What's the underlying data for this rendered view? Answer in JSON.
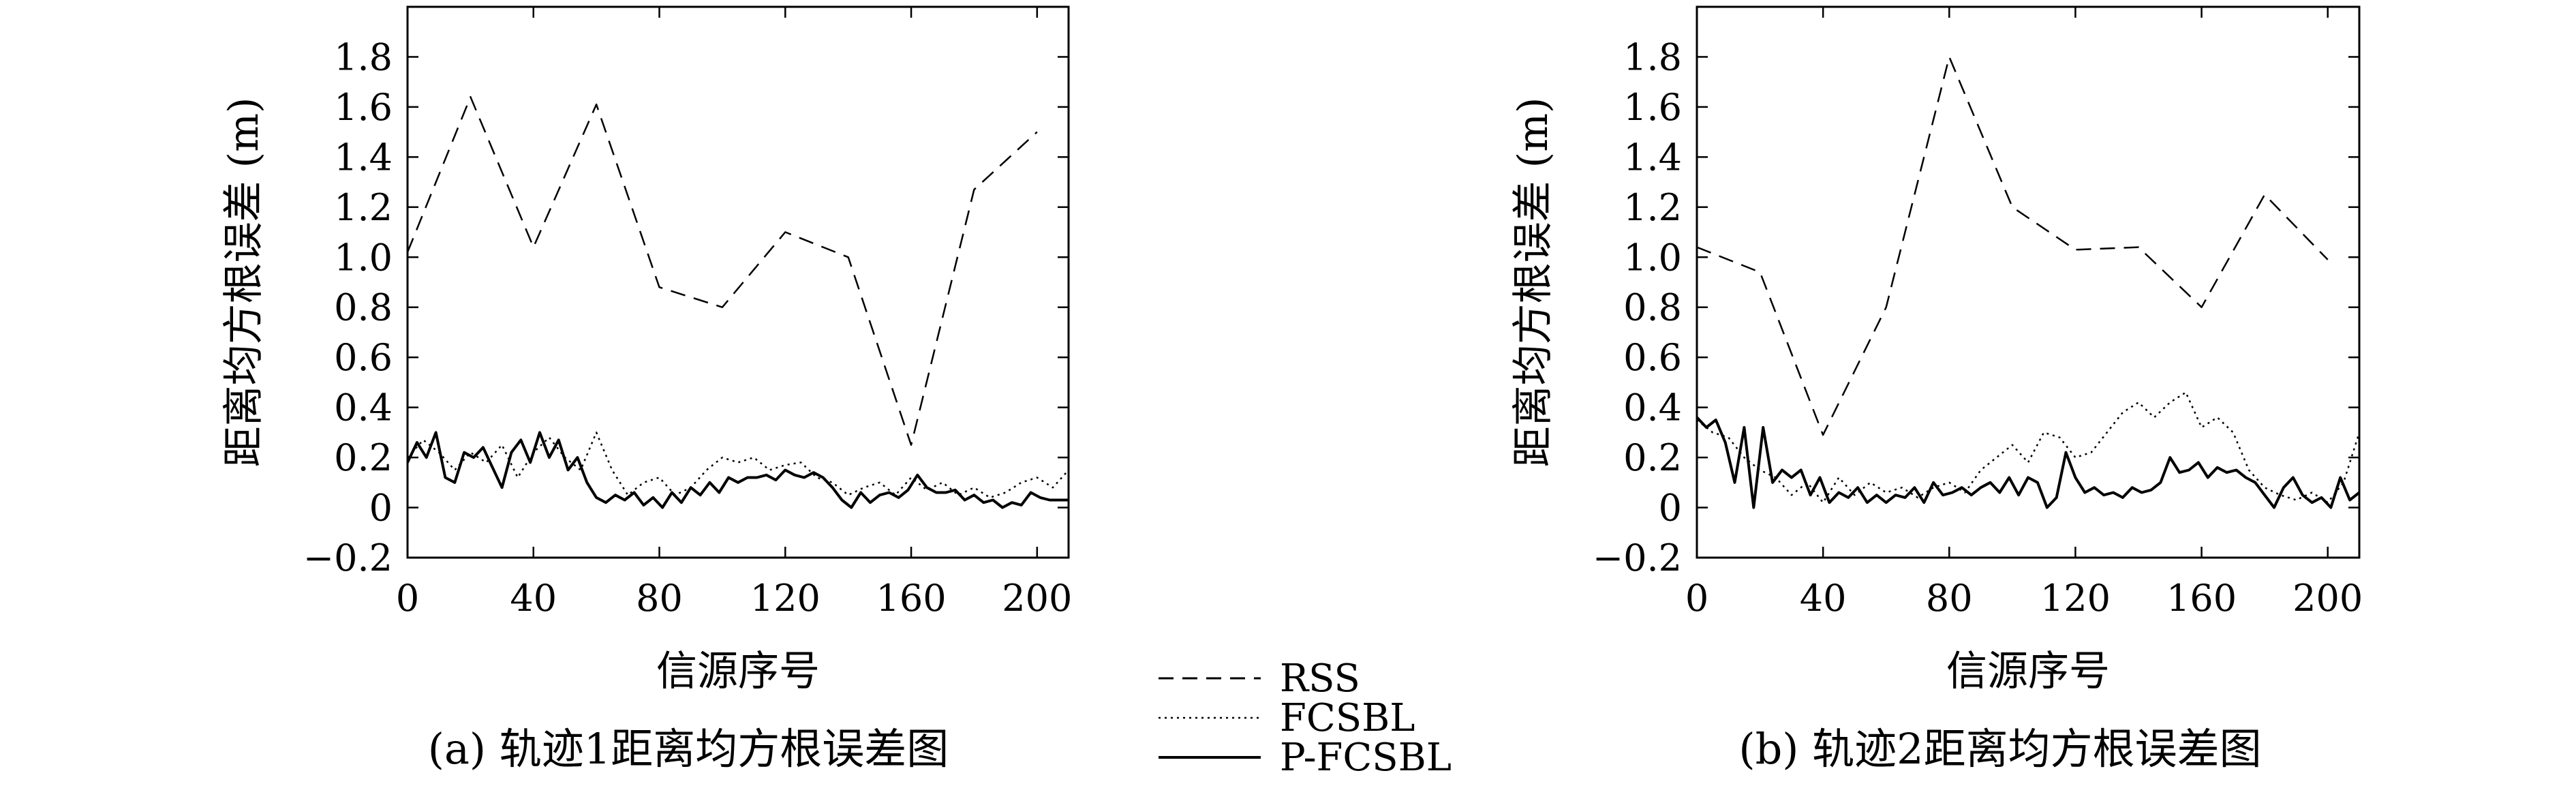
{
  "legend": {
    "items": [
      {
        "label": "RSS",
        "style": "dashed"
      },
      {
        "label": "FCSBL",
        "style": "dotted"
      },
      {
        "label": "P-FCSBL",
        "style": "solid"
      }
    ]
  },
  "chart_data": [
    {
      "type": "line",
      "caption": "(a) 轨迹1距离均方根误差图",
      "xlabel": "信源序号",
      "ylabel": "距离均方根误差 (m)",
      "xlim": [
        0,
        210
      ],
      "ylim": [
        -0.2,
        2.0
      ],
      "xticks": [
        "0",
        "40",
        "80",
        "120",
        "160",
        "200"
      ],
      "yticks": [
        "−0.2",
        "0",
        "0.2",
        "0.4",
        "0.6",
        "0.8",
        "1.0",
        "1.2",
        "1.4",
        "1.6",
        "1.8"
      ],
      "grid": false,
      "series": [
        {
          "name": "RSS",
          "style": "dashed",
          "x": [
            0,
            20,
            40,
            60,
            80,
            100,
            120,
            140,
            160,
            180,
            200
          ],
          "y": [
            1.02,
            1.64,
            1.04,
            1.61,
            0.88,
            0.8,
            1.1,
            1.0,
            0.25,
            1.27,
            1.5
          ]
        },
        {
          "name": "FCSBL",
          "style": "dotted",
          "x": [
            0,
            5,
            10,
            15,
            20,
            25,
            30,
            35,
            40,
            45,
            50,
            55,
            60,
            65,
            70,
            75,
            80,
            85,
            90,
            95,
            100,
            105,
            110,
            115,
            120,
            125,
            130,
            135,
            140,
            145,
            150,
            155,
            160,
            165,
            170,
            175,
            180,
            185,
            190,
            195,
            200,
            205,
            210
          ],
          "y": [
            0.2,
            0.27,
            0.22,
            0.15,
            0.22,
            0.18,
            0.25,
            0.12,
            0.22,
            0.28,
            0.2,
            0.15,
            0.3,
            0.15,
            0.05,
            0.1,
            0.12,
            0.05,
            0.08,
            0.15,
            0.2,
            0.18,
            0.2,
            0.15,
            0.17,
            0.18,
            0.12,
            0.1,
            0.05,
            0.08,
            0.1,
            0.05,
            0.12,
            0.07,
            0.1,
            0.05,
            0.08,
            0.04,
            0.06,
            0.1,
            0.12,
            0.08,
            0.15
          ]
        },
        {
          "name": "P-FCSBL",
          "style": "solid",
          "x": [
            0,
            3,
            6,
            9,
            12,
            15,
            18,
            21,
            24,
            27,
            30,
            33,
            36,
            39,
            42,
            45,
            48,
            51,
            54,
            57,
            60,
            63,
            66,
            69,
            72,
            75,
            78,
            81,
            84,
            87,
            90,
            93,
            96,
            99,
            102,
            105,
            108,
            111,
            114,
            117,
            120,
            123,
            126,
            129,
            132,
            135,
            138,
            141,
            144,
            147,
            150,
            153,
            156,
            159,
            162,
            165,
            168,
            171,
            174,
            177,
            180,
            183,
            186,
            189,
            192,
            195,
            198,
            201,
            204,
            207,
            210
          ],
          "y": [
            0.18,
            0.26,
            0.2,
            0.3,
            0.12,
            0.1,
            0.22,
            0.2,
            0.24,
            0.16,
            0.08,
            0.22,
            0.27,
            0.18,
            0.3,
            0.2,
            0.27,
            0.15,
            0.2,
            0.1,
            0.04,
            0.02,
            0.05,
            0.03,
            0.06,
            0.01,
            0.04,
            0.0,
            0.06,
            0.02,
            0.08,
            0.05,
            0.1,
            0.06,
            0.12,
            0.1,
            0.12,
            0.12,
            0.13,
            0.11,
            0.15,
            0.13,
            0.12,
            0.14,
            0.12,
            0.08,
            0.03,
            0.0,
            0.06,
            0.02,
            0.05,
            0.06,
            0.04,
            0.07,
            0.13,
            0.08,
            0.06,
            0.06,
            0.07,
            0.03,
            0.05,
            0.02,
            0.03,
            0.0,
            0.02,
            0.01,
            0.06,
            0.04,
            0.03,
            0.03,
            0.03
          ]
        }
      ]
    },
    {
      "type": "line",
      "caption": "(b) 轨迹2距离均方根误差图",
      "xlabel": "信源序号",
      "ylabel": "距离均方根误差 (m)",
      "xlim": [
        0,
        210
      ],
      "ylim": [
        -0.2,
        2.0
      ],
      "xticks": [
        "0",
        "40",
        "80",
        "120",
        "160",
        "200"
      ],
      "yticks": [
        "−0.2",
        "0",
        "0.2",
        "0.4",
        "0.6",
        "0.8",
        "1.0",
        "1.2",
        "1.4",
        "1.6",
        "1.8"
      ],
      "grid": false,
      "series": [
        {
          "name": "RSS",
          "style": "dashed",
          "x": [
            0,
            20,
            40,
            60,
            80,
            100,
            120,
            140,
            160,
            180,
            200
          ],
          "y": [
            1.04,
            0.94,
            0.29,
            0.8,
            1.8,
            1.2,
            1.03,
            1.04,
            0.8,
            1.25,
            0.99
          ]
        },
        {
          "name": "FCSBL",
          "style": "dotted",
          "x": [
            0,
            5,
            10,
            15,
            20,
            25,
            30,
            35,
            40,
            45,
            50,
            55,
            60,
            65,
            70,
            75,
            80,
            85,
            90,
            95,
            100,
            105,
            110,
            115,
            120,
            125,
            130,
            135,
            140,
            145,
            150,
            155,
            160,
            165,
            170,
            175,
            180,
            185,
            190,
            195,
            200,
            205,
            210
          ],
          "y": [
            0.35,
            0.3,
            0.28,
            0.2,
            0.15,
            0.12,
            0.05,
            0.1,
            0.02,
            0.12,
            0.05,
            0.1,
            0.06,
            0.08,
            0.04,
            0.08,
            0.1,
            0.06,
            0.15,
            0.2,
            0.25,
            0.18,
            0.3,
            0.28,
            0.2,
            0.22,
            0.3,
            0.38,
            0.42,
            0.36,
            0.42,
            0.46,
            0.32,
            0.36,
            0.3,
            0.15,
            0.08,
            0.05,
            0.03,
            0.06,
            0.02,
            0.1,
            0.3
          ]
        },
        {
          "name": "P-FCSBL",
          "style": "solid",
          "x": [
            0,
            3,
            6,
            9,
            12,
            15,
            18,
            21,
            24,
            27,
            30,
            33,
            36,
            39,
            42,
            45,
            48,
            51,
            54,
            57,
            60,
            63,
            66,
            69,
            72,
            75,
            78,
            81,
            84,
            87,
            90,
            93,
            96,
            99,
            102,
            105,
            108,
            111,
            114,
            117,
            120,
            123,
            126,
            129,
            132,
            135,
            138,
            141,
            144,
            147,
            150,
            153,
            156,
            159,
            162,
            165,
            168,
            171,
            174,
            177,
            180,
            183,
            186,
            189,
            192,
            195,
            198,
            201,
            204,
            207,
            210
          ],
          "y": [
            0.36,
            0.32,
            0.35,
            0.26,
            0.1,
            0.32,
            0.0,
            0.32,
            0.1,
            0.15,
            0.12,
            0.15,
            0.05,
            0.12,
            0.02,
            0.06,
            0.04,
            0.08,
            0.02,
            0.05,
            0.02,
            0.05,
            0.04,
            0.08,
            0.02,
            0.1,
            0.05,
            0.06,
            0.08,
            0.05,
            0.08,
            0.1,
            0.06,
            0.12,
            0.05,
            0.12,
            0.1,
            0.0,
            0.04,
            0.22,
            0.12,
            0.06,
            0.08,
            0.05,
            0.06,
            0.04,
            0.08,
            0.06,
            0.07,
            0.1,
            0.2,
            0.14,
            0.15,
            0.18,
            0.12,
            0.16,
            0.14,
            0.15,
            0.12,
            0.1,
            0.05,
            0.0,
            0.08,
            0.12,
            0.05,
            0.02,
            0.04,
            0.0,
            0.12,
            0.03,
            0.06
          ]
        }
      ]
    }
  ]
}
